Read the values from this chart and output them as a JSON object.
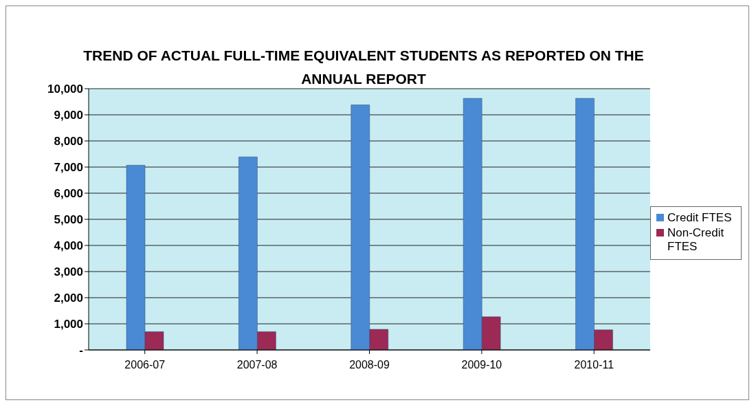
{
  "chart_data": {
    "type": "bar",
    "title": "TREND OF ACTUAL FULL-TIME EQUIVALENT STUDENTS AS REPORTED ON THE ANNUAL REPORT",
    "categories": [
      "2006-07",
      "2007-08",
      "2008-09",
      "2009-10",
      "2010-11"
    ],
    "series": [
      {
        "name": "Credit FTES",
        "color": "#4a8ad4",
        "values": [
          7070,
          7390,
          9380,
          9630,
          9630
        ]
      },
      {
        "name": "Non-Credit FTES",
        "color": "#9b2a55",
        "values": [
          700,
          700,
          790,
          1270,
          770
        ]
      }
    ],
    "ylim": [
      0,
      10000
    ],
    "yticks": [
      {
        "value": 0,
        "label": "-"
      },
      {
        "value": 1000,
        "label": "1,000"
      },
      {
        "value": 2000,
        "label": "2,000"
      },
      {
        "value": 3000,
        "label": "3,000"
      },
      {
        "value": 4000,
        "label": "4,000"
      },
      {
        "value": 5000,
        "label": "5,000"
      },
      {
        "value": 6000,
        "label": "6,000"
      },
      {
        "value": 7000,
        "label": "7,000"
      },
      {
        "value": 8000,
        "label": "8,000"
      },
      {
        "value": 9000,
        "label": "9,000"
      },
      {
        "value": 10000,
        "label": "10,000"
      }
    ],
    "grid": "y",
    "legend": "right"
  }
}
